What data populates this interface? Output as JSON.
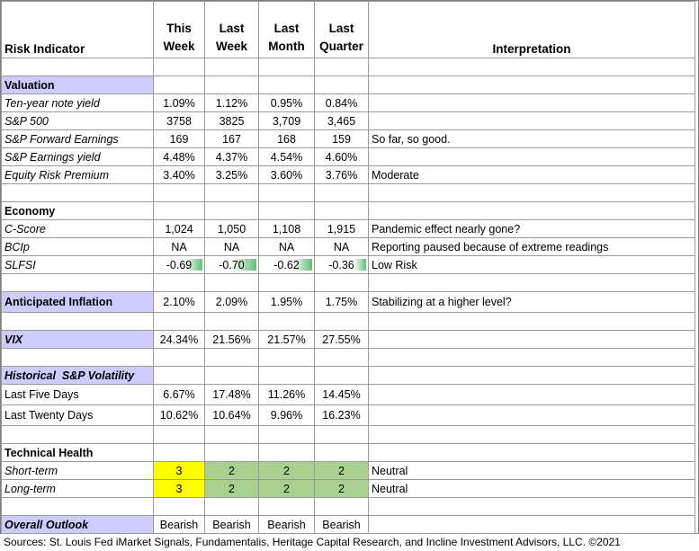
{
  "header": {
    "risk_indicator": "Risk Indicator",
    "col1_line1": "This",
    "col1_line2": "Week",
    "col2_line1": "Last",
    "col2_line2": "Week",
    "col3_line1": "Last",
    "col3_line2": "Month",
    "col4_line1": "Last",
    "col4_line2": "Quarter",
    "interpretation": "Interpretation"
  },
  "valuation": {
    "title": "Valuation",
    "rows": [
      {
        "label": "Ten-year note yield",
        "v": [
          "1.09%",
          "1.12%",
          "0.95%",
          "0.84%"
        ],
        "interp": ""
      },
      {
        "label": "S&P 500",
        "v": [
          "3758",
          "3825",
          "3,709",
          "3,465"
        ],
        "interp": ""
      },
      {
        "label": "S&P Forward Earnings",
        "v": [
          "169",
          "167",
          "168",
          "159"
        ],
        "interp": "So far, so good."
      },
      {
        "label": "S&P Earnings yield",
        "v": [
          "4.48%",
          "4.37%",
          "4.54%",
          "4.60%"
        ],
        "interp": ""
      },
      {
        "label": "Equity Risk Premium",
        "v": [
          "3.40%",
          "3.25%",
          "3.60%",
          "3.76%"
        ],
        "interp": "Moderate"
      }
    ]
  },
  "economy": {
    "title": "Economy",
    "rows": [
      {
        "label": "C-Score",
        "v": [
          "1,024",
          "1,050",
          "1,108",
          "1,915"
        ],
        "interp": "Pandemic effect nearly gone?"
      },
      {
        "label": "BCIp",
        "v": [
          "NA",
          "NA",
          "NA",
          "NA"
        ],
        "interp": "Reporting paused because of extreme readings"
      },
      {
        "label": "SLFSI",
        "v": [
          "-0.69",
          "-0.70",
          "-0.62",
          "-0.36"
        ],
        "interp": "Low Risk"
      }
    ]
  },
  "inflation": {
    "label": "Anticipated Inflation",
    "v": [
      "2.10%",
      "2.09%",
      "1.95%",
      "1.75%"
    ],
    "interp": "Stabilizing at a higher level?"
  },
  "vix": {
    "label": "VIX",
    "v": [
      "24.34%",
      "21.56%",
      "21.57%",
      "27.55%"
    ]
  },
  "volatility": {
    "title": "Historical  S&P Volatility",
    "rows": [
      {
        "label": "Last Five Days",
        "v": [
          "6.67%",
          "17.48%",
          "11.26%",
          "14.45%"
        ]
      },
      {
        "label": "Last Twenty Days",
        "v": [
          "10.62%",
          "10.64%",
          "9.96%",
          "16.23%"
        ]
      }
    ]
  },
  "technical": {
    "title": "Technical Health",
    "rows": [
      {
        "label": "Short-term",
        "v": [
          "3",
          "2",
          "2",
          "2"
        ],
        "interp": "Neutral"
      },
      {
        "label": "Long-term",
        "v": [
          "3",
          "2",
          "2",
          "2"
        ],
        "interp": "Neutral"
      }
    ]
  },
  "outlook": {
    "label": "Overall Outlook",
    "v": [
      "Bearish",
      "Bearish",
      "Bearish",
      "Bearish"
    ]
  },
  "footer": "Sources: St. Louis Fed  iMarket Signals, Fundamentalis, Heritage Capital Research, and Incline Investment Advisors, LLC. ©2021",
  "colors": {
    "section_fill": "#ccccff",
    "bullish_yellow": "#ffff00",
    "neutral_green": "#a9d08e",
    "data_bar": "#63be7b"
  }
}
